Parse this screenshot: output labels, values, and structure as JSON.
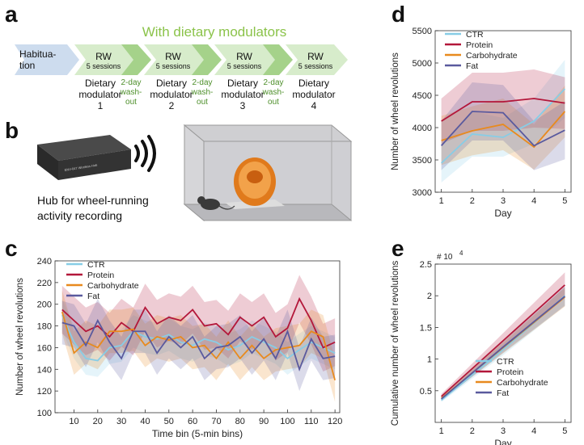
{
  "letters": {
    "a": "a",
    "b": "b",
    "c": "c",
    "d": "d",
    "e": "e"
  },
  "panel_a": {
    "banner": "With dietary modulators",
    "stage0": {
      "line1": "Habitua-",
      "line2": "tion"
    },
    "rw_title": "RW",
    "rw_sub": "5 sessions",
    "modulators": [
      {
        "l1": "Dietary",
        "l2": "modulator",
        "l3": "1"
      },
      {
        "l1": "Dietary",
        "l2": "modulator",
        "l3": "2"
      },
      {
        "l1": "Dietary",
        "l2": "modulator",
        "l3": "3"
      },
      {
        "l1": "Dietary",
        "l2": "modulator",
        "l3": "4"
      }
    ],
    "washouts": [
      {
        "l1": "2-day",
        "l2": "wash-",
        "l3": "out"
      },
      {
        "l1": "2-day",
        "l2": "wash-",
        "l3": "out"
      },
      {
        "l1": "2-day",
        "l2": "wash-",
        "l3": "out"
      }
    ],
    "colors": {
      "habituation": "#cddcee",
      "rw_light": "#d7eccb",
      "rw_dark": "#a5d28a",
      "banner": "#8bc34a"
    }
  },
  "panel_b": {
    "hub_line1": "Hub for wheel-running",
    "hub_line2": "activity recording",
    "device_label": "ENV-047  Wireless Hub"
  },
  "colors": {
    "CTR": "#87cde6",
    "Protein": "#b3173a",
    "Carbohydrate": "#e88a1e",
    "Fat": "#5a5a9e"
  },
  "chart_data": [
    {
      "id": "c",
      "type": "line",
      "xlabel": "Time bin (5-min bins)",
      "ylabel": "Number of wheel revolutions",
      "xlim": [
        2,
        122
      ],
      "ylim": [
        100,
        240
      ],
      "xticks": [
        10,
        20,
        30,
        40,
        50,
        60,
        70,
        80,
        90,
        100,
        110,
        120
      ],
      "yticks": [
        100,
        120,
        140,
        160,
        180,
        200,
        220,
        240
      ],
      "x": [
        5,
        10,
        15,
        20,
        25,
        30,
        35,
        40,
        45,
        50,
        55,
        60,
        65,
        70,
        75,
        80,
        85,
        90,
        95,
        100,
        105,
        110,
        115,
        120
      ],
      "series": [
        {
          "name": "CTR",
          "values": [
            190,
            165,
            150,
            148,
            160,
            162,
            175,
            170,
            168,
            172,
            165,
            162,
            168,
            165,
            158,
            162,
            170,
            165,
            160,
            150,
            158,
            165,
            160,
            155
          ],
          "band": [
            15,
            15,
            15,
            15,
            15,
            15,
            15,
            15,
            15,
            15,
            15,
            15,
            15,
            15,
            15,
            15,
            15,
            15,
            15,
            15,
            15,
            15,
            15,
            15
          ]
        },
        {
          "name": "Protein",
          "values": [
            195,
            185,
            175,
            180,
            170,
            183,
            175,
            197,
            182,
            188,
            185,
            195,
            180,
            182,
            172,
            188,
            180,
            188,
            170,
            178,
            205,
            185,
            160,
            165
          ],
          "band": [
            22,
            22,
            22,
            22,
            22,
            22,
            22,
            22,
            22,
            22,
            22,
            22,
            22,
            22,
            22,
            22,
            22,
            22,
            22,
            22,
            22,
            22,
            22,
            22
          ]
        },
        {
          "name": "Carbohydrate",
          "values": [
            193,
            155,
            165,
            160,
            175,
            175,
            177,
            162,
            170,
            167,
            170,
            160,
            162,
            150,
            165,
            150,
            162,
            150,
            158,
            160,
            162,
            175,
            170,
            130
          ],
          "band": [
            20,
            20,
            20,
            20,
            20,
            20,
            20,
            20,
            20,
            20,
            20,
            20,
            20,
            20,
            20,
            20,
            20,
            20,
            20,
            20,
            20,
            20,
            20,
            20
          ]
        },
        {
          "name": "Fat",
          "values": [
            183,
            180,
            162,
            185,
            165,
            150,
            175,
            175,
            155,
            170,
            160,
            170,
            150,
            160,
            162,
            170,
            155,
            168,
            150,
            175,
            140,
            168,
            150,
            152
          ],
          "band": [
            20,
            20,
            20,
            20,
            20,
            20,
            20,
            20,
            20,
            20,
            20,
            20,
            20,
            20,
            20,
            20,
            20,
            20,
            20,
            20,
            20,
            20,
            20,
            20
          ]
        }
      ],
      "legend": "top-left"
    },
    {
      "id": "d",
      "type": "line",
      "xlabel": "Day",
      "ylabel": "Number of wheel revolutions",
      "xlim": [
        0.8,
        5.2
      ],
      "ylim": [
        3000,
        5500
      ],
      "xticks": [
        1,
        2,
        3,
        4,
        5
      ],
      "yticks": [
        3000,
        3500,
        4000,
        4500,
        5000,
        5500
      ],
      "x": [
        1,
        2,
        3,
        4,
        5
      ],
      "series": [
        {
          "name": "CTR",
          "values": [
            3450,
            3900,
            3850,
            4100,
            4600
          ],
          "band": [
            300,
            350,
            300,
            350,
            450
          ]
        },
        {
          "name": "Protein",
          "values": [
            4100,
            4400,
            4400,
            4450,
            4380
          ],
          "band": [
            350,
            450,
            450,
            450,
            400
          ]
        },
        {
          "name": "Carbohydrate",
          "values": [
            3800,
            3950,
            4050,
            3700,
            4250
          ],
          "band": [
            380,
            380,
            400,
            350,
            400
          ]
        },
        {
          "name": "Fat",
          "values": [
            3720,
            4250,
            4230,
            3720,
            3960
          ],
          "band": [
            380,
            450,
            430,
            380,
            450
          ]
        }
      ],
      "legend": "top-left"
    },
    {
      "id": "e",
      "type": "line",
      "xlabel": "Day",
      "ylabel": "Cumulative number of wheel revolutions",
      "exponent": "# 10",
      "exponent_power": "4",
      "xlim": [
        0.8,
        5.2
      ],
      "ylim": [
        0,
        2.5
      ],
      "xticks": [
        1,
        2,
        3,
        4,
        5
      ],
      "yticks": [
        0.5,
        1,
        1.5,
        2,
        2.5
      ],
      "ytick_labels": [
        "0.5",
        "1",
        "1.5",
        "2",
        "2.5"
      ],
      "x": [
        1,
        2,
        3,
        4,
        5
      ],
      "series": [
        {
          "name": "CTR",
          "values": [
            0.35,
            0.75,
            1.15,
            1.57,
            2.0
          ],
          "band": [
            0.03,
            0.06,
            0.09,
            0.12,
            0.15
          ]
        },
        {
          "name": "Protein",
          "values": [
            0.41,
            0.85,
            1.29,
            1.73,
            2.17
          ],
          "band": [
            0.04,
            0.08,
            0.12,
            0.16,
            0.2
          ]
        },
        {
          "name": "Carbohydrate",
          "values": [
            0.38,
            0.78,
            1.18,
            1.58,
            1.98
          ],
          "band": [
            0.03,
            0.06,
            0.09,
            0.12,
            0.15
          ]
        },
        {
          "name": "Fat",
          "values": [
            0.37,
            0.78,
            1.19,
            1.59,
            1.99
          ],
          "band": [
            0.03,
            0.06,
            0.09,
            0.12,
            0.15
          ]
        }
      ],
      "legend": "bottom-right"
    }
  ]
}
